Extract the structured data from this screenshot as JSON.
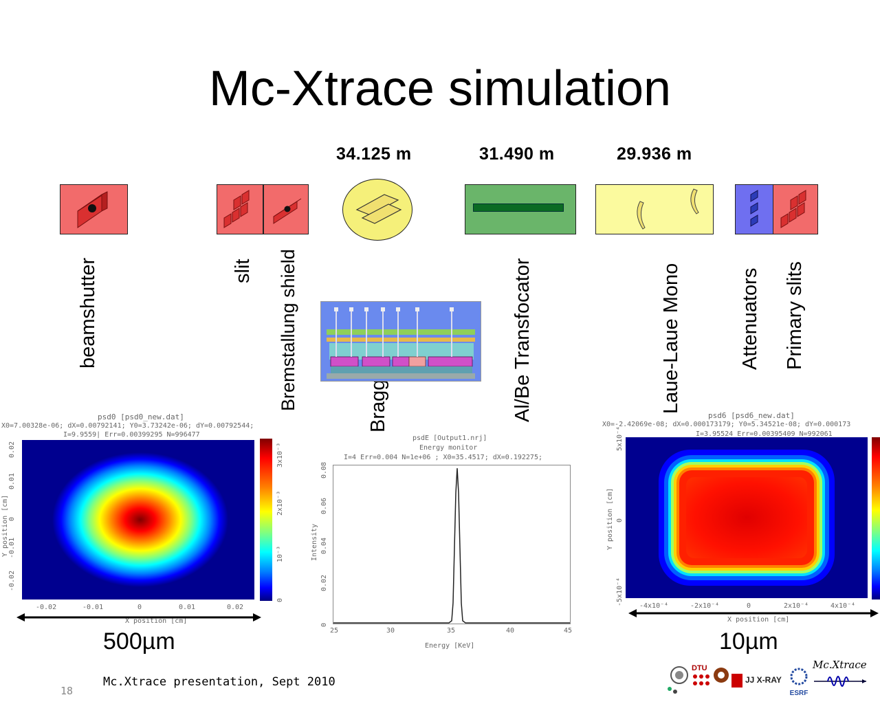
{
  "slide": {
    "title": "Mc-Xtrace simulation",
    "number": "18",
    "footer_text": "Mc.Xtrace presentation, Sept 2010"
  },
  "distances": [
    "34.125 m",
    "31.490 m",
    "29.936 m"
  ],
  "components": [
    {
      "label": "beamshutter",
      "color": "#f26b6b"
    },
    {
      "label": "slit",
      "color": "#f26b6b"
    },
    {
      "label": "Bremstallung shield",
      "color": "#f26b6b"
    },
    {
      "label": "Bragg Mono",
      "color": "#f5f07a"
    },
    {
      "label": "Al/Be Transfocator",
      "color": "#6ab56a"
    },
    {
      "label": "Laue-Laue Mono",
      "color": "#fbfa9e"
    },
    {
      "label": "Attenuators",
      "color": "#6f6ff0"
    },
    {
      "label": "Primary slits",
      "color": "#f26b6b"
    }
  ],
  "plots": {
    "left": {
      "title": "psd0 [psd0_new.dat]",
      "info1": "X0=7.00328e-06; dX=0.00792141; Y0=3.73242e-06; dY=0.00792544;",
      "info2": "I=9.9559| Err=0.00399295 N=996477",
      "xlabel": "X position [cm]",
      "ylabel": "Y position [cm]",
      "xticks": [
        "-0.02",
        "-0.01",
        "0",
        "0.01",
        "0.02"
      ],
      "yticks": [
        "0.02",
        "0.01",
        "0",
        "-0.01",
        "-0.02"
      ],
      "cbar": [
        "3x10⁻³",
        "2x10⁻³",
        "10⁻³",
        "0"
      ],
      "scale": "500µm"
    },
    "middle": {
      "title": "psdE [Output1.nrj]",
      "subtitle": "Energy monitor",
      "info": "I=4 Err=0.004 N=1e+06 ; X0=35.4517; dX=0.192275;",
      "xlabel": "Energy [KeV]",
      "ylabel": "Intensity",
      "xticks": [
        "25",
        "30",
        "35",
        "40",
        "45"
      ],
      "yticks": [
        "0.08",
        "0.06",
        "0.04",
        "0.02",
        "0"
      ]
    },
    "right": {
      "title": "psd6 [psd6_new.dat]",
      "info1": "X0=-2.42069e-08; dX=0.000173179; Y0=5.34521e-08; dY=0.000173",
      "info2": "I=3.95524 Err=0.00395409 N=992061",
      "xlabel": "X position [cm]",
      "ylabel": "Y position [cm]",
      "xticks": [
        "-4x10⁻⁴",
        "-2x10⁻⁴",
        "0",
        "2x10⁻⁴",
        "4x10⁻⁴"
      ],
      "yticks": [
        "5x10⁻⁴",
        "0",
        "-5x10⁻⁴"
      ],
      "scale": "10µm"
    }
  },
  "logos": {
    "dtu": "DTU",
    "jjxray": "JJ X-RAY",
    "esrf": "ESRF",
    "mcxtrace": "Mc.Xtrace"
  },
  "colors": {
    "jet_dark_red": "#800000",
    "jet_red": "#ff0000",
    "jet_yellow": "#ffff00",
    "jet_cyan": "#00ffff",
    "jet_blue": "#0000ff",
    "jet_dark_blue": "#00007f"
  }
}
